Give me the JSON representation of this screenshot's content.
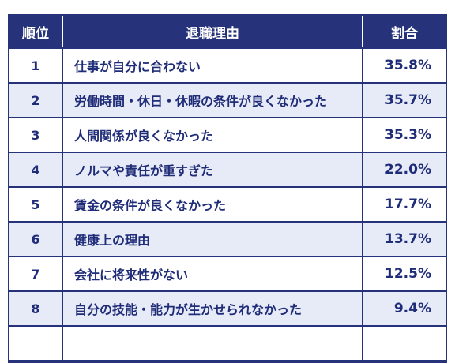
{
  "table": {
    "header": [
      "順位",
      "退職理由",
      "割合"
    ],
    "rows": [
      [
        "1",
        "仕事が自分に合わない",
        "35.8%"
      ],
      [
        "2",
        "労働時間・休日・休暇の条件が良くなかった",
        "35.7%"
      ],
      [
        "3",
        "人間関係が良くなかった",
        "35.3%"
      ],
      [
        "4",
        "ノルマや責任が重すぎた",
        "22.0%"
      ],
      [
        "5",
        "賃金の条件が良くなかった",
        "17.7%"
      ],
      [
        "6",
        "健康上の理由",
        "13.7%"
      ],
      [
        "7",
        "会社に将来性がない",
        "12.5%"
      ],
      [
        "8",
        "自分の技能・能力が生かせられなかった",
        "9.4%"
      ]
    ]
  }
}
